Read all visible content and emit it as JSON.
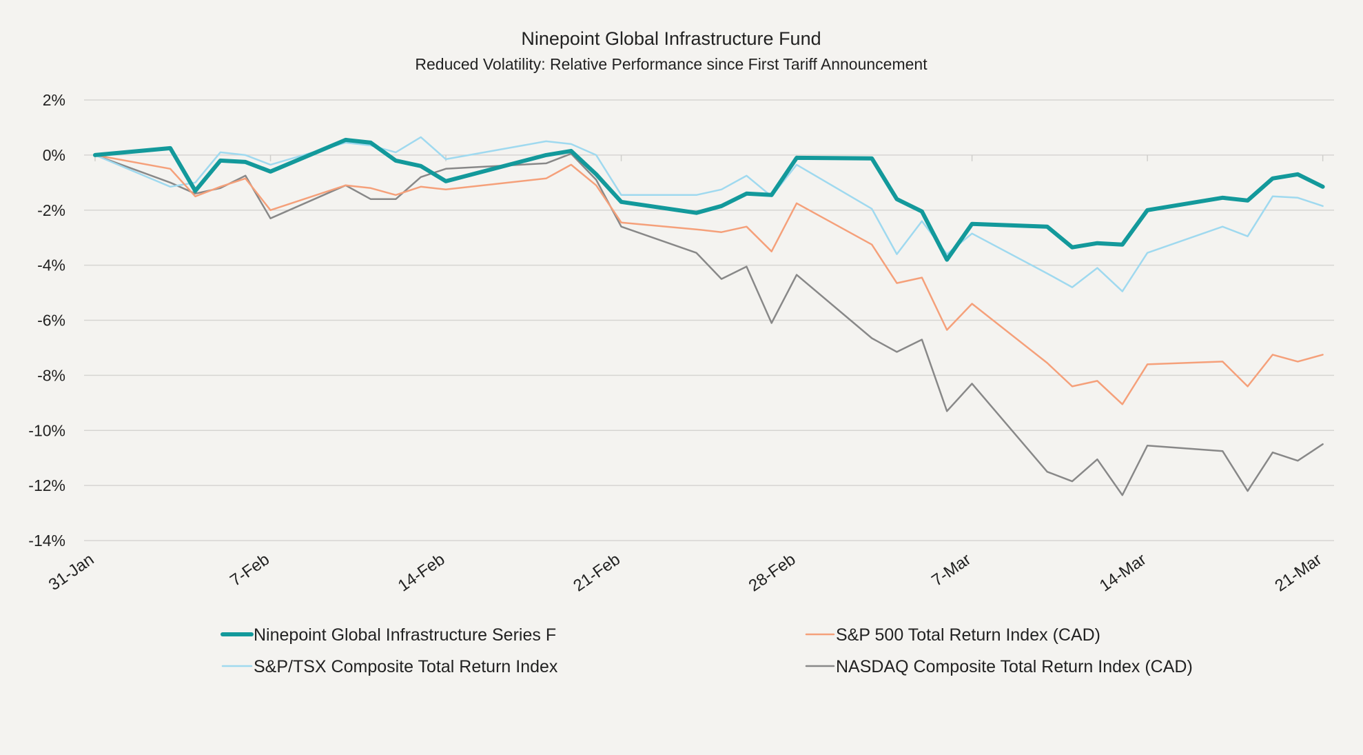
{
  "chart_data": {
    "type": "line",
    "title": "Ninepoint Global Infrastructure Fund",
    "subtitle": "Reduced Volatility: Relative Performance since First Tariff Announcement",
    "xlabel": "",
    "ylabel": "",
    "x_ticks": [
      "31-Jan",
      "7-Feb",
      "14-Feb",
      "21-Feb",
      "28-Feb",
      "7-Mar",
      "14-Mar",
      "21-Mar"
    ],
    "ylim": [
      -14,
      2
    ],
    "y_ticks": [
      "2%",
      "0%",
      "-2%",
      "-4%",
      "-6%",
      "-8%",
      "-10%",
      "-12%",
      "-14%"
    ],
    "grid": true,
    "legend_position": "bottom",
    "series": [
      {
        "name": "Ninepoint Global Infrastructure Series F",
        "color": "#13999b",
        "x": [
          0,
          3,
          4,
          5,
          6,
          7,
          10,
          11,
          12,
          13,
          14,
          18,
          19,
          20,
          21,
          24,
          25,
          26,
          27,
          28,
          31,
          32,
          33,
          34,
          35,
          38,
          39,
          40,
          41,
          42,
          45,
          46,
          47,
          48,
          49
        ],
        "values": [
          0.0,
          0.25,
          -1.3,
          -0.2,
          -0.25,
          -0.6,
          0.55,
          0.45,
          -0.2,
          -0.4,
          -0.95,
          0.0,
          0.15,
          -0.7,
          -1.7,
          -2.1,
          -1.85,
          -1.4,
          -1.45,
          -0.1,
          -0.12,
          -1.6,
          -2.05,
          -3.8,
          -2.5,
          -2.6,
          -3.35,
          -3.2,
          -3.25,
          -2.0,
          -1.55,
          -1.65,
          -0.85,
          -0.7,
          -1.15
        ]
      },
      {
        "name": "S&P 500 Total Return Index (CAD)",
        "color": "#f5a07a",
        "x": [
          0,
          3,
          4,
          5,
          6,
          7,
          10,
          11,
          12,
          13,
          14,
          18,
          19,
          20,
          21,
          24,
          25,
          26,
          27,
          28,
          31,
          32,
          33,
          34,
          35,
          38,
          39,
          40,
          41,
          42,
          45,
          46,
          47,
          48,
          49
        ],
        "values": [
          0.0,
          -0.5,
          -1.5,
          -1.15,
          -0.85,
          -2.0,
          -1.1,
          -1.2,
          -1.45,
          -1.15,
          -1.25,
          -0.85,
          -0.35,
          -1.1,
          -2.45,
          -2.7,
          -2.8,
          -2.6,
          -3.5,
          -1.75,
          -3.25,
          -4.65,
          -4.45,
          -6.35,
          -5.4,
          -7.55,
          -8.4,
          -8.2,
          -9.05,
          -7.6,
          -7.5,
          -8.4,
          -7.25,
          -7.5,
          -7.25
        ]
      },
      {
        "name": "S&P/TSX Composite Total Return Index",
        "color": "#9fd9ef",
        "x": [
          0,
          3,
          4,
          5,
          6,
          7,
          10,
          11,
          12,
          13,
          14,
          18,
          19,
          20,
          21,
          24,
          25,
          26,
          27,
          28,
          31,
          32,
          33,
          34,
          35,
          38,
          39,
          40,
          41,
          42,
          45,
          46,
          47,
          48,
          49
        ],
        "values": [
          0.0,
          -1.15,
          -1.0,
          0.1,
          0.0,
          -0.35,
          0.45,
          0.35,
          0.1,
          0.65,
          -0.15,
          0.5,
          0.4,
          0.0,
          -1.45,
          -1.45,
          -1.25,
          -0.75,
          -1.5,
          -0.35,
          -1.95,
          -3.6,
          -2.4,
          -3.6,
          -2.85,
          -4.3,
          -4.8,
          -4.1,
          -4.95,
          -3.55,
          -2.6,
          -2.95,
          -1.5,
          -1.55,
          -1.85
        ]
      },
      {
        "name": "NASDAQ Composite Total Return Index (CAD)",
        "color": "#888888",
        "x": [
          0,
          3,
          4,
          5,
          6,
          7,
          10,
          11,
          12,
          13,
          14,
          18,
          19,
          20,
          21,
          24,
          25,
          26,
          27,
          28,
          31,
          32,
          33,
          34,
          35,
          38,
          39,
          40,
          41,
          42,
          45,
          46,
          47,
          48,
          49
        ],
        "values": [
          0.0,
          -1.0,
          -1.4,
          -1.2,
          -0.75,
          -2.3,
          -1.1,
          -1.6,
          -1.6,
          -0.8,
          -0.5,
          -0.3,
          0.05,
          -0.9,
          -2.6,
          -3.55,
          -4.5,
          -4.05,
          -6.1,
          -4.35,
          -6.65,
          -7.15,
          -6.7,
          -9.3,
          -8.3,
          -11.5,
          -11.85,
          -11.05,
          -12.35,
          -10.55,
          -10.75,
          -12.2,
          -10.8,
          -11.1,
          -10.5
        ]
      }
    ]
  }
}
